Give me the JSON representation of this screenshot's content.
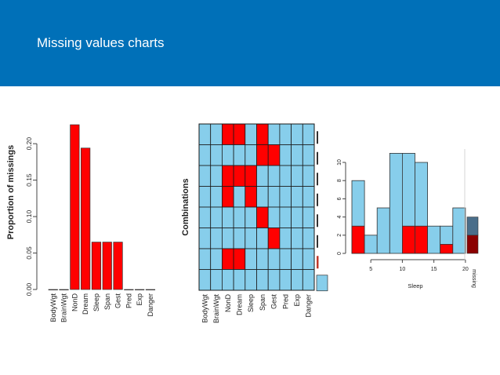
{
  "slide": {
    "title": "Missing values charts"
  },
  "colors": {
    "header": "#0070b8",
    "missing": "#ff0000",
    "observed": "#87ceeb",
    "hist_missing_dark": "#8b0000",
    "hist_observed_dark": "#4a6e8a"
  },
  "chart_data": [
    {
      "type": "bar",
      "ylabel": "Proportion of missings",
      "categories": [
        "BodyWgt",
        "BrainWgt",
        "NonD",
        "Dream",
        "Sleep",
        "Span",
        "Gest",
        "Pred",
        "Exp",
        "Danger"
      ],
      "values": [
        0,
        0,
        0.226,
        0.194,
        0.065,
        0.065,
        0.065,
        0,
        0,
        0
      ],
      "ylim": [
        0,
        0.226
      ],
      "yticks": [
        "0.00",
        "0.05",
        "0.10",
        "0.15",
        "0.20"
      ]
    },
    {
      "type": "heatmap",
      "ylabel": "Combinations",
      "columns": [
        "BodyWgt",
        "BrainWgt",
        "NonD",
        "Dream",
        "Sleep",
        "Span",
        "Gest",
        "Pred",
        "Exp",
        "Danger"
      ],
      "rows": [
        [
          0,
          0,
          1,
          1,
          0,
          1,
          0,
          0,
          0,
          0
        ],
        [
          0,
          0,
          0,
          0,
          0,
          1,
          1,
          0,
          0,
          0
        ],
        [
          0,
          0,
          1,
          1,
          1,
          0,
          0,
          0,
          0,
          0
        ],
        [
          0,
          0,
          1,
          0,
          1,
          0,
          0,
          0,
          0,
          0
        ],
        [
          0,
          0,
          0,
          0,
          0,
          1,
          0,
          0,
          0,
          0
        ],
        [
          0,
          0,
          0,
          0,
          0,
          0,
          1,
          0,
          0,
          0
        ],
        [
          0,
          0,
          1,
          1,
          0,
          0,
          0,
          0,
          0,
          0
        ],
        [
          0,
          0,
          0,
          0,
          0,
          0,
          0,
          0,
          0,
          0
        ]
      ],
      "row_frequencies": [
        0.02,
        0.02,
        0.02,
        0.02,
        0.02,
        0.02,
        0.06,
        0.34
      ]
    },
    {
      "type": "bar",
      "xlabel": "Sleep",
      "x_range": [
        2,
        20
      ],
      "xticks": [
        "5",
        "10",
        "15",
        "20"
      ],
      "yticks": [
        "0",
        "2",
        "4",
        "6",
        "8",
        "10"
      ],
      "ylim": [
        0,
        11
      ],
      "bins": [
        {
          "from": 2,
          "to": 4,
          "total": 8,
          "missing": 3
        },
        {
          "from": 4,
          "to": 6,
          "total": 2,
          "missing": 0
        },
        {
          "from": 6,
          "to": 8,
          "total": 5,
          "missing": 0
        },
        {
          "from": 8,
          "to": 10,
          "total": 11,
          "missing": 0
        },
        {
          "from": 10,
          "to": 12,
          "total": 11,
          "missing": 3
        },
        {
          "from": 12,
          "to": 14,
          "total": 10,
          "missing": 3
        },
        {
          "from": 14,
          "to": 16,
          "total": 3,
          "missing": 0
        },
        {
          "from": 16,
          "to": 18,
          "total": 3,
          "missing": 1
        },
        {
          "from": 18,
          "to": 20,
          "total": 5,
          "missing": 0
        }
      ],
      "missing_label": "missing",
      "missing_bar": {
        "observed": 2,
        "missing": 2
      }
    }
  ]
}
